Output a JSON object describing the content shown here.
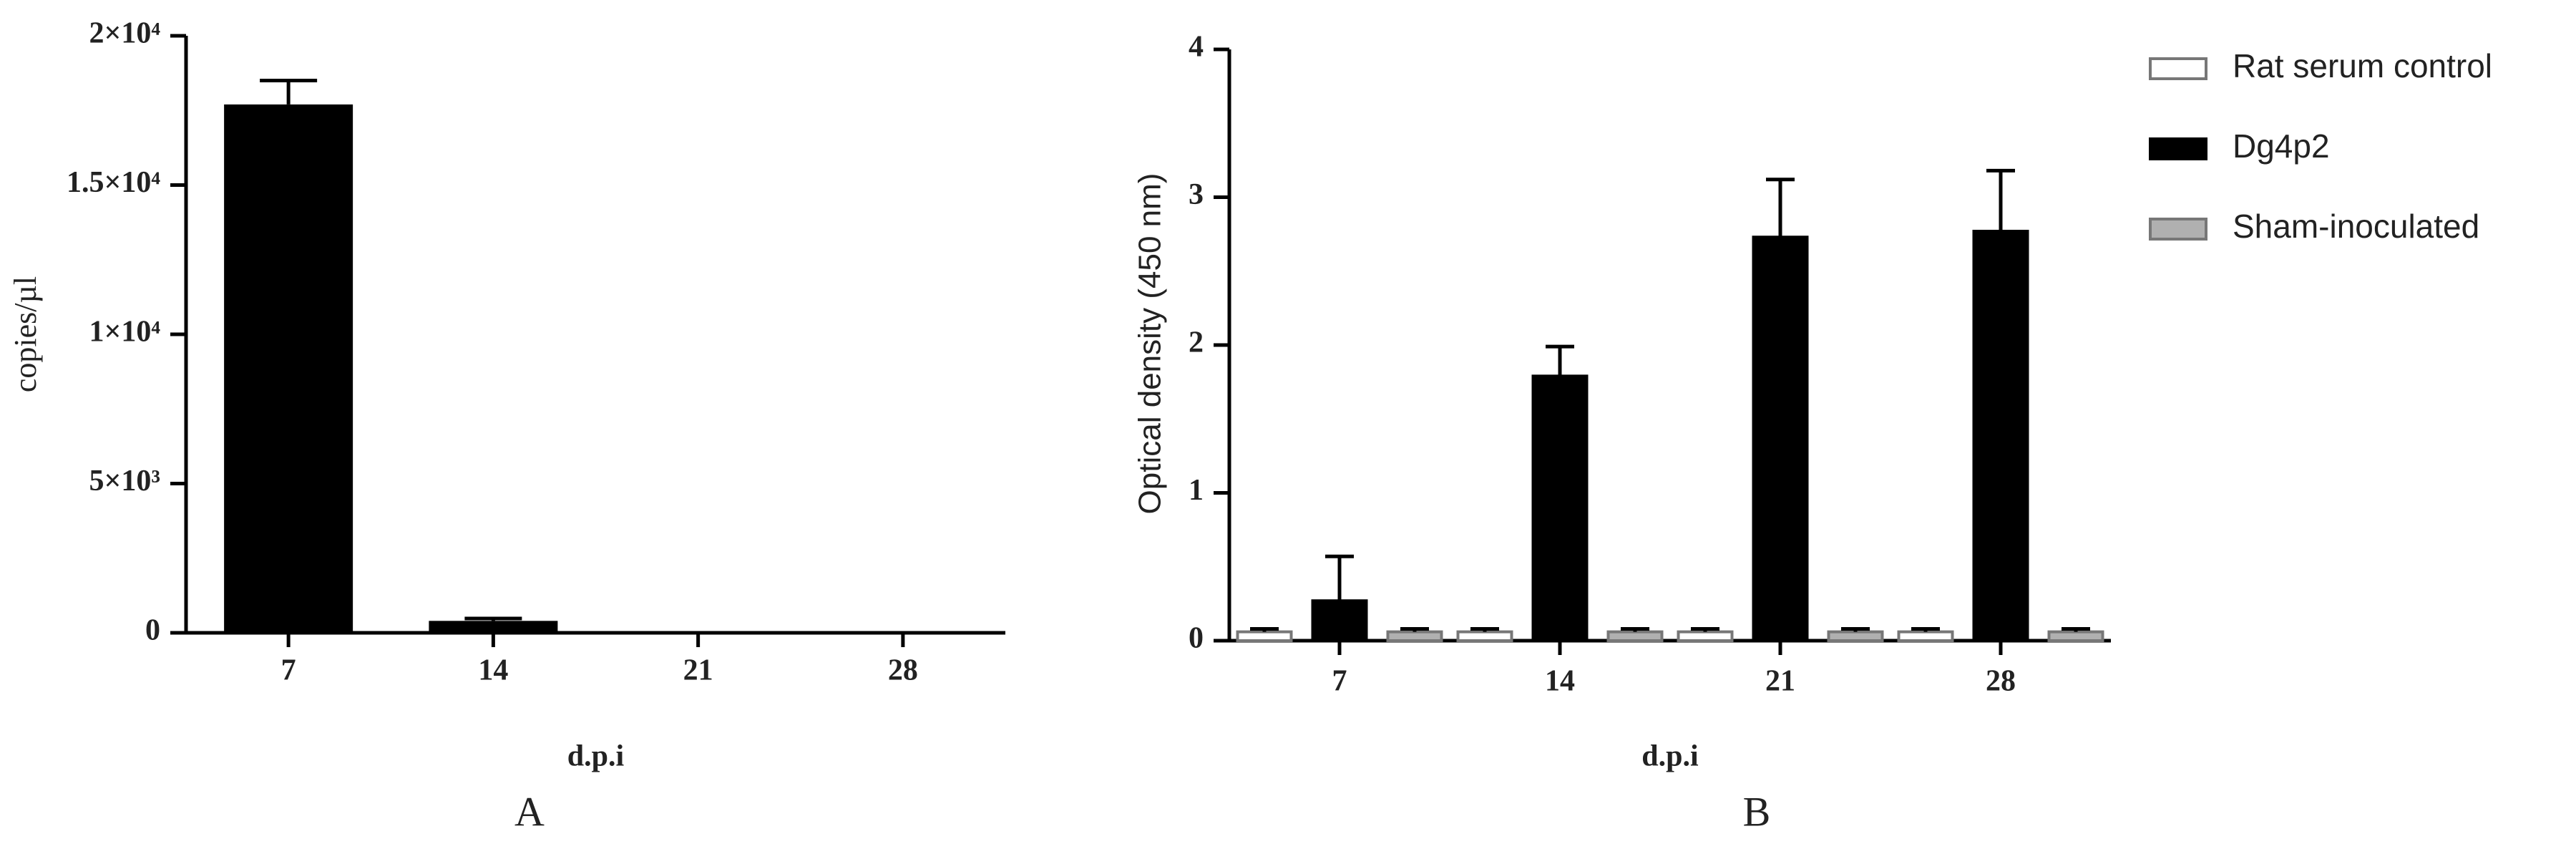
{
  "chart_data": [
    {
      "type": "bar",
      "panel_label": "A",
      "x_label": "d.p.i",
      "y_label": "copies/µl",
      "categories": [
        "7",
        "14",
        "21",
        "28"
      ],
      "values": [
        17700,
        400,
        0,
        0
      ],
      "errors": [
        800,
        80,
        0,
        0
      ],
      "color": "#000000",
      "ylim": [
        0,
        20000
      ],
      "yticks": [
        0,
        {
          "value": 5000,
          "label": "5×10³"
        },
        {
          "value": 10000,
          "label": "1×10⁴"
        },
        {
          "value": 15000,
          "label": "1.5×10⁴"
        },
        {
          "value": 20000,
          "label": "2×10⁴"
        }
      ]
    },
    {
      "type": "grouped_bar",
      "panel_label": "B",
      "x_label": "d.p.i",
      "y_label": "Optical density (450 nm)",
      "categories": [
        "7",
        "14",
        "21",
        "28"
      ],
      "series": [
        {
          "name": "Rat serum control",
          "color": "#ffffff",
          "values": [
            0.06,
            0.06,
            0.06,
            0.06
          ],
          "errors": [
            0.02,
            0.02,
            0.02,
            0.02
          ]
        },
        {
          "name": "Dg4p2",
          "color": "#000000",
          "values": [
            0.27,
            1.79,
            2.73,
            2.77
          ],
          "errors": [
            0.3,
            0.2,
            0.39,
            0.41
          ]
        },
        {
          "name": "Sham-inoculated",
          "color": "#b0b0b0",
          "values": [
            0.06,
            0.06,
            0.06,
            0.06
          ],
          "errors": [
            0.02,
            0.02,
            0.02,
            0.02
          ]
        }
      ],
      "ylim": [
        0,
        4
      ],
      "yticks": [
        0,
        1,
        2,
        3,
        4
      ],
      "legend": "upper right"
    }
  ]
}
